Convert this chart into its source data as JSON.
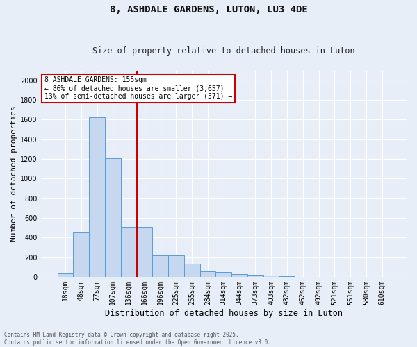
{
  "title": "8, ASHDALE GARDENS, LUTON, LU3 4DE",
  "subtitle": "Size of property relative to detached houses in Luton",
  "xlabel": "Distribution of detached houses by size in Luton",
  "ylabel": "Number of detached properties",
  "bar_color": "#c5d8f0",
  "bar_edge_color": "#5b9bd5",
  "background_color": "#e8eef8",
  "plot_bg_color": "#e8eef8",
  "grid_color": "#ffffff",
  "categories": [
    "18sqm",
    "48sqm",
    "77sqm",
    "107sqm",
    "136sqm",
    "166sqm",
    "196sqm",
    "225sqm",
    "255sqm",
    "284sqm",
    "314sqm",
    "344sqm",
    "373sqm",
    "403sqm",
    "432sqm",
    "462sqm",
    "492sqm",
    "521sqm",
    "551sqm",
    "580sqm",
    "610sqm"
  ],
  "values": [
    35,
    450,
    1620,
    1210,
    510,
    510,
    215,
    215,
    130,
    55,
    45,
    30,
    20,
    10,
    5,
    2,
    0,
    0,
    0,
    0,
    0
  ],
  "ylim": [
    0,
    2100
  ],
  "yticks": [
    0,
    200,
    400,
    600,
    800,
    1000,
    1200,
    1400,
    1600,
    1800,
    2000
  ],
  "vline_x": 4.5,
  "vline_color": "#cc0000",
  "annotation_text": "8 ASHDALE GARDENS: 155sqm\n← 86% of detached houses are smaller (3,657)\n13% of semi-detached houses are larger (571) →",
  "annotation_box_facecolor": "#ffffff",
  "annotation_box_edgecolor": "#cc0000",
  "footer_line1": "Contains HM Land Registry data © Crown copyright and database right 2025.",
  "footer_line2": "Contains public sector information licensed under the Open Government Licence v3.0.",
  "title_fontsize": 10,
  "subtitle_fontsize": 8.5,
  "ylabel_fontsize": 8,
  "xlabel_fontsize": 8.5,
  "tick_fontsize": 7,
  "footer_fontsize": 5.5,
  "annotation_fontsize": 7
}
